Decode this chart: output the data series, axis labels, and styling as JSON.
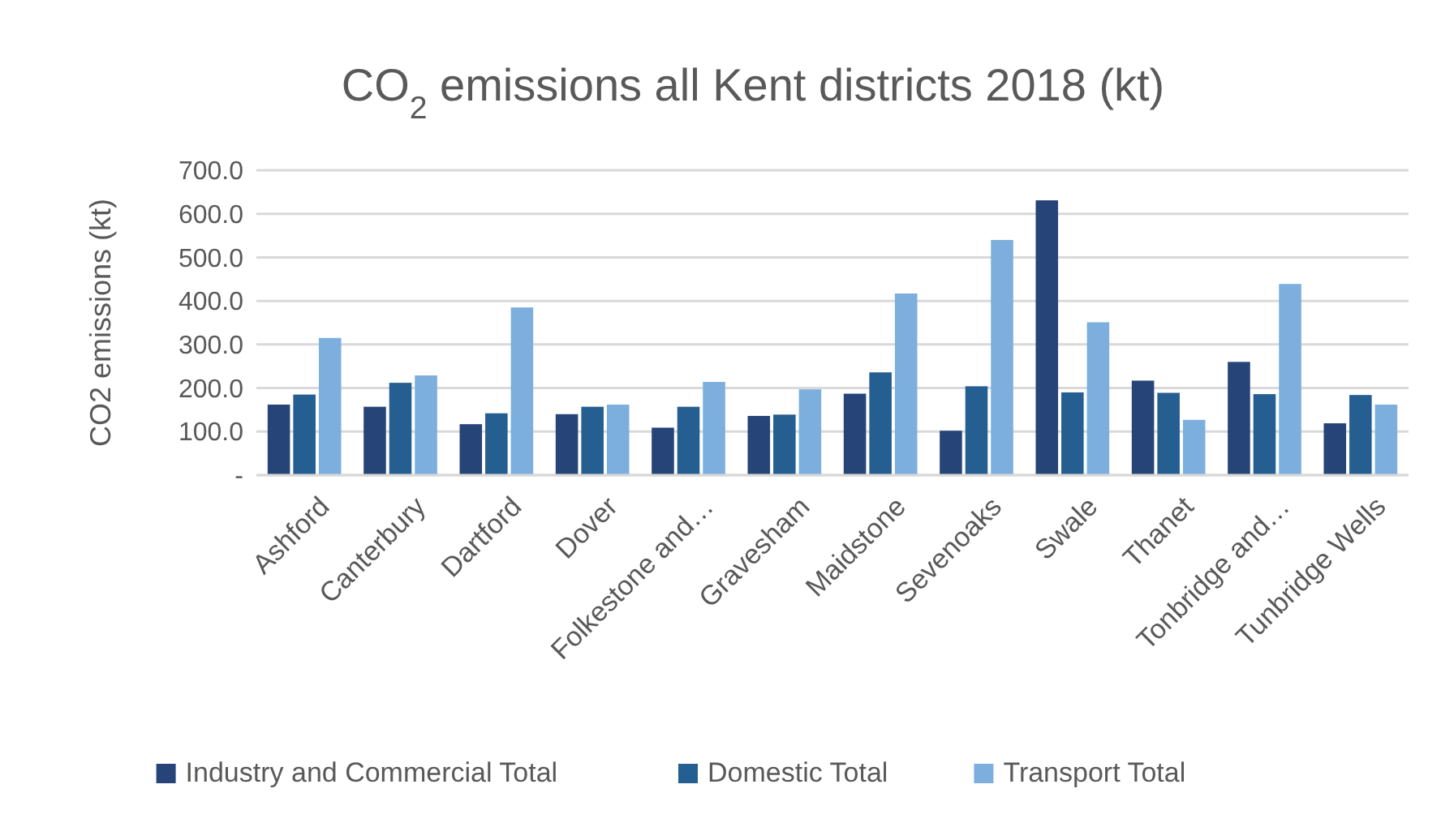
{
  "chart_data": {
    "type": "bar",
    "title": "CO$_{2}$ emissions all Kent districts 2018 (kt)",
    "ylabel": "CO2 emissions (kt)",
    "categories": [
      "Ashford",
      "Canterbury",
      "Dartford",
      "Dover",
      "Folkestone and…",
      "Gravesham",
      "Maidstone",
      "Sevenoaks",
      "Swale",
      "Thanet",
      "Tonbridge and…",
      "Tunbridge Wells"
    ],
    "series": [
      {
        "name": "Industry and Commercial Total",
        "color": "#264478",
        "values": [
          162,
          157,
          117,
          140,
          109,
          136,
          187,
          102,
          631,
          217,
          260,
          119
        ]
      },
      {
        "name": "Domestic Total",
        "color": "#255e91",
        "values": [
          185,
          212,
          142,
          157,
          157,
          139,
          236,
          204,
          190,
          189,
          186,
          184
        ]
      },
      {
        "name": "Transport Total",
        "color": "#7cafdd",
        "values": [
          315,
          229,
          385,
          162,
          214,
          197,
          417,
          540,
          351,
          127,
          439,
          162
        ]
      }
    ],
    "ylim": [
      0,
      700
    ],
    "yticks": [
      {
        "value": 0,
        "label": "-"
      },
      {
        "value": 100,
        "label": "100.0"
      },
      {
        "value": 200,
        "label": "200.0"
      },
      {
        "value": 300,
        "label": "300.0"
      },
      {
        "value": 400,
        "label": "400.0"
      },
      {
        "value": 500,
        "label": "500.0"
      },
      {
        "value": 600,
        "label": "600.0"
      },
      {
        "value": 700,
        "label": "700.0"
      }
    ],
    "grid": "y",
    "legend": "bottom"
  }
}
